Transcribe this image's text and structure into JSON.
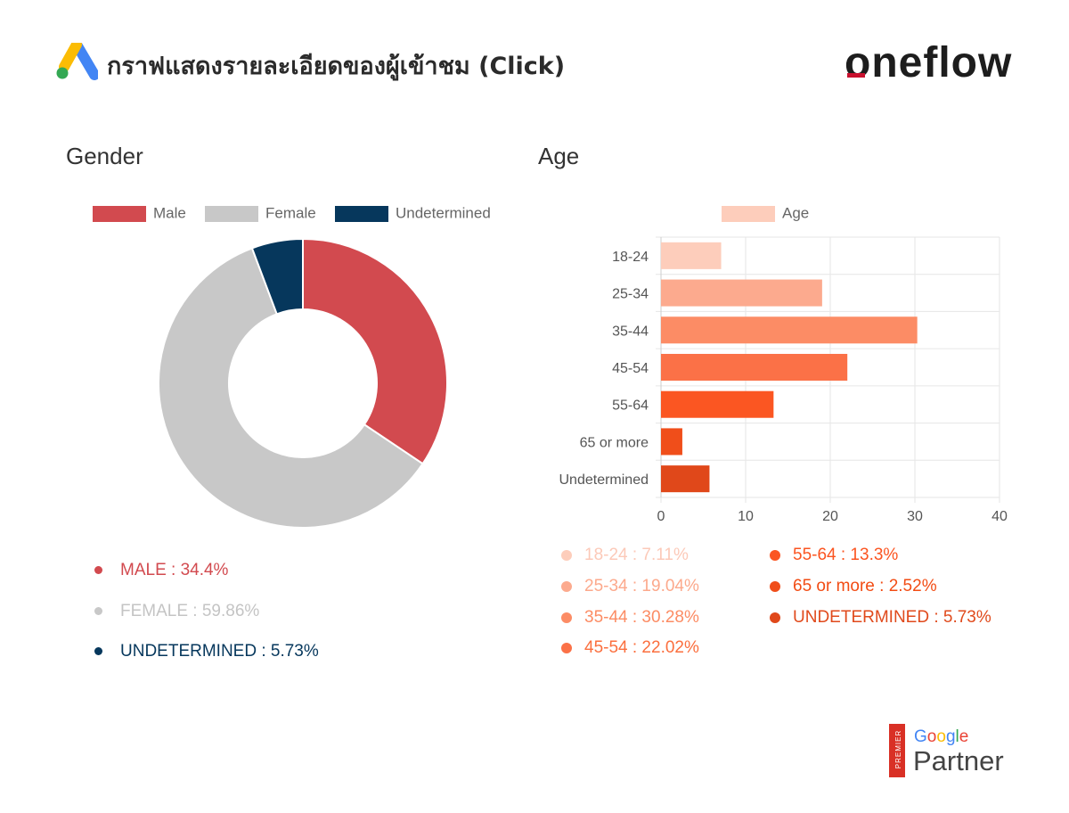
{
  "header": {
    "title": "กราฟแสดงรายละเอียดของผู้เข้าชม (Click)",
    "logo_icon": "google-ads-icon",
    "brand": "oneflow"
  },
  "gender": {
    "title": "Gender",
    "legend": [
      {
        "label": "Male",
        "color": "#d24a4f"
      },
      {
        "label": "Female",
        "color": "#c8c8c8"
      },
      {
        "label": "Undetermined",
        "color": "#06375c"
      }
    ],
    "summary": [
      {
        "text": "MALE  :  34.4%",
        "color": "#d24a4f"
      },
      {
        "text": "FEMALE  :  59.86%",
        "color": "#c4c4c4"
      },
      {
        "text": "UNDETERMINED  :  5.73%",
        "color": "#06375c"
      }
    ]
  },
  "age": {
    "title": "Age",
    "legend_label": "Age",
    "summary_left": [
      {
        "text": "18-24  :  7.11%",
        "color": "#fcc9b8"
      },
      {
        "text": "25-34  :  19.04%",
        "color": "#fca98c"
      },
      {
        "text": "35-44  :  30.28%",
        "color": "#fc8c64"
      },
      {
        "text": "45-54  :  22.02%",
        "color": "#fb6f3e"
      }
    ],
    "summary_right": [
      {
        "text": "55-64  :  13.3%",
        "color": "#fb5420"
      },
      {
        "text": "65  or  more  :  2.52%",
        "color": "#f24c14"
      },
      {
        "text": "UNDETERMINED  :  5.73%",
        "color": "#e04a1c"
      }
    ]
  },
  "partner": {
    "premier": "PREMIER",
    "google": "Google",
    "partner": "Partner"
  },
  "chart_data": [
    {
      "type": "pie",
      "title": "Gender",
      "categories": [
        "Male",
        "Female",
        "Undetermined"
      ],
      "values": [
        34.4,
        59.86,
        5.73
      ],
      "colors": [
        "#d24a4f",
        "#c8c8c8",
        "#06375c"
      ],
      "donut": true,
      "legend": "top"
    },
    {
      "type": "bar",
      "orientation": "horizontal",
      "title": "Age",
      "categories": [
        "18-24",
        "25-34",
        "35-44",
        "45-54",
        "55-64",
        "65 or more",
        "Undetermined"
      ],
      "values": [
        7.11,
        19.04,
        30.28,
        22.02,
        13.3,
        2.52,
        5.73
      ],
      "colors": [
        "#fdcdbb",
        "#fcaa8e",
        "#fc8c65",
        "#fb7147",
        "#fb5622",
        "#f04e1a",
        "#e0481a"
      ],
      "xlim": [
        0,
        40
      ],
      "xticks": [
        0,
        10,
        20,
        30,
        40
      ],
      "series_name": "Age",
      "grid": true,
      "legend": "top"
    }
  ]
}
